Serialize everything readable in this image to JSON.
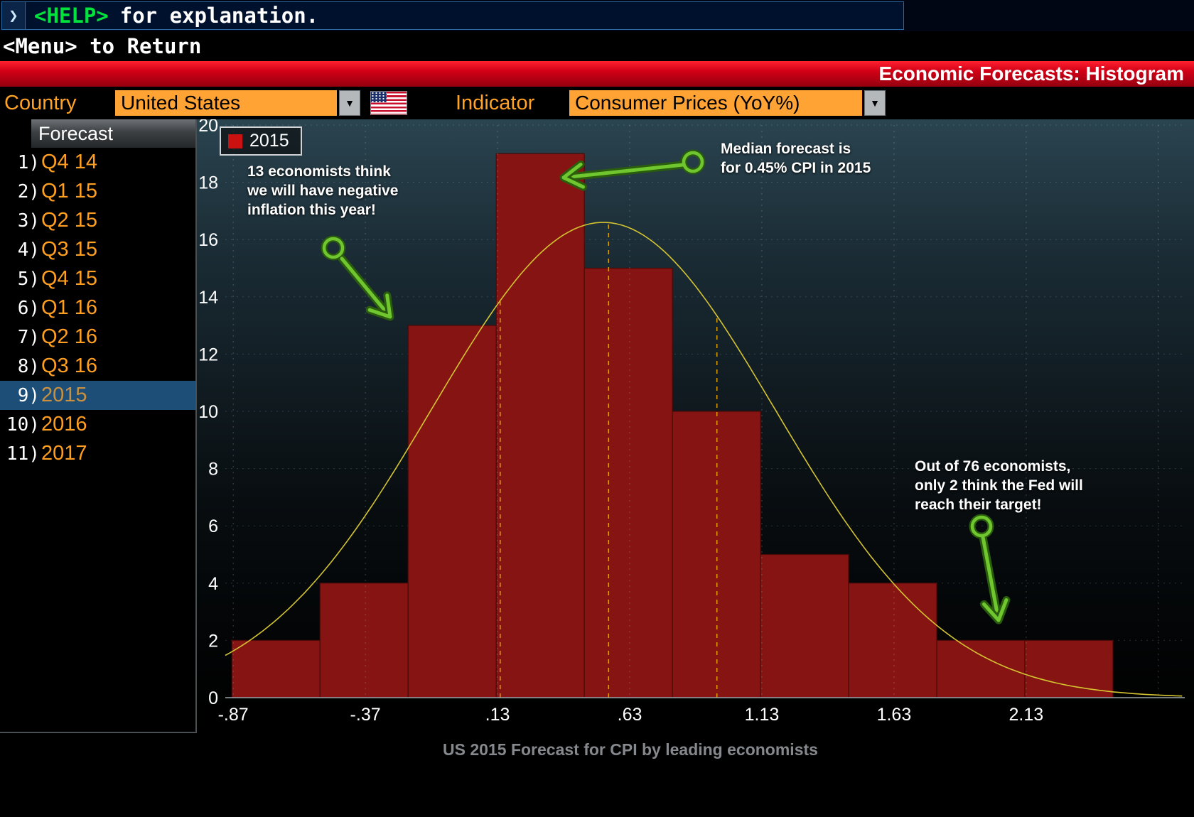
{
  "terminal": {
    "prompt_icon": "❯",
    "help_key": "<HELP>",
    "help_rest": "for explanation.",
    "menu_line": "<Menu> to Return",
    "banner_title": "Economic Forecasts: Histogram"
  },
  "controls": {
    "country_label": "Country",
    "country_value": "United States",
    "indicator_label": "Indicator",
    "indicator_value": "Consumer Prices (YoY%)",
    "dropdown_arrow": "▼"
  },
  "sidebar": {
    "header": "Forecast",
    "items": [
      {
        "num": "1)",
        "label": "Q4 14",
        "selected": false
      },
      {
        "num": "2)",
        "label": "Q1 15",
        "selected": false
      },
      {
        "num": "3)",
        "label": "Q2 15",
        "selected": false
      },
      {
        "num": "4)",
        "label": "Q3 15",
        "selected": false
      },
      {
        "num": "5)",
        "label": "Q4 15",
        "selected": false
      },
      {
        "num": "6)",
        "label": "Q1 16",
        "selected": false
      },
      {
        "num": "7)",
        "label": "Q2 16",
        "selected": false
      },
      {
        "num": "8)",
        "label": "Q3 16",
        "selected": false
      },
      {
        "num": "9)",
        "label": "2015",
        "selected": true
      },
      {
        "num": "10)",
        "label": "2016",
        "selected": false
      },
      {
        "num": "11)",
        "label": "2017",
        "selected": false
      }
    ]
  },
  "chart_data": {
    "type": "bar",
    "title": "US 2015 Forecast for CPI by leading economists",
    "legend": [
      {
        "label": "2015",
        "color": "#cc1111"
      }
    ],
    "xlim": [
      -0.9,
      2.73
    ],
    "ylim": [
      0,
      20
    ],
    "y_ticks": [
      0,
      2,
      4,
      6,
      8,
      10,
      12,
      14,
      16,
      18,
      20
    ],
    "x_ticks": [
      {
        "value": -0.87,
        "label": "-.87"
      },
      {
        "value": -0.37,
        "label": "-.37"
      },
      {
        "value": 0.13,
        "label": ".13"
      },
      {
        "value": 0.63,
        "label": ".63"
      },
      {
        "value": 1.13,
        "label": "1.13"
      },
      {
        "value": 1.63,
        "label": "1.63"
      },
      {
        "value": 2.13,
        "label": "2.13"
      },
      {
        "value": 2.63,
        "label": ""
      }
    ],
    "histogram": {
      "bin_edges": [
        -0.875,
        -0.5417,
        -0.2083,
        0.125,
        0.4583,
        0.7917,
        1.125,
        1.4583,
        1.7917,
        2.125,
        2.4583
      ],
      "counts": [
        2,
        4,
        13,
        19,
        15,
        10,
        5,
        4,
        2,
        2
      ],
      "total_economists": 76,
      "median_forecast_pct": 0.45,
      "bar_color": "#861412"
    },
    "bell_curve": {
      "mean": 0.53,
      "sd": 0.65,
      "peak": 16.6,
      "color": "#d4c431"
    },
    "marker_lines": {
      "values": [
        0.14,
        0.55,
        0.96
      ],
      "color": "#e8a700"
    },
    "annotations": [
      {
        "text": "13 economists think\nwe will have negative\ninflation this year!"
      },
      {
        "text": "Median forecast  is\nfor 0.45% CPI in 2015"
      },
      {
        "text": "Out of 76 economists,\nonly 2 think the Fed will\nreach their target!"
      }
    ]
  }
}
